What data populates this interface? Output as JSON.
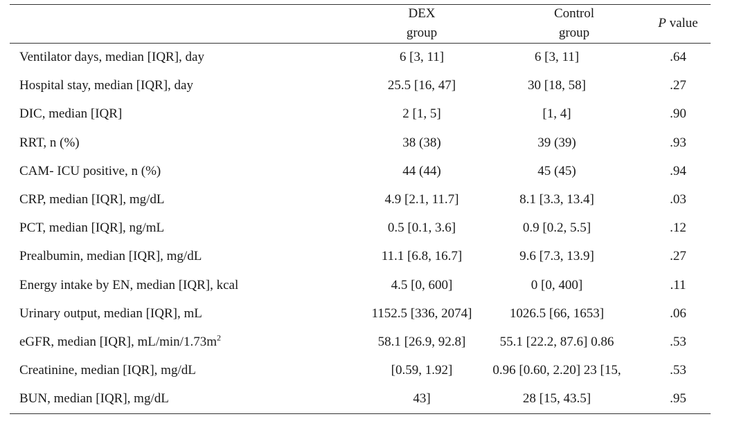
{
  "header": {
    "dex_line1": "DEX",
    "dex_line2": "group",
    "control_line1": "Control",
    "control_line2": "group",
    "p_italic": "P",
    "p_rest": " value"
  },
  "rows": [
    {
      "label": "Ventilator days, median [IQR], day",
      "dex": "6 [3, 11]",
      "control": "6 [3, 11]",
      "p": ".64"
    },
    {
      "label": "Hospital stay, median [IQR], day",
      "dex": "25.5 [16, 47]",
      "control": "30 [18, 58]",
      "p": ".27"
    },
    {
      "label": "DIC, median [IQR]",
      "dex": "2 [1, 5]",
      "control": "[1, 4]",
      "p": ".90"
    },
    {
      "label": "RRT, n (%)",
      "dex": "38 (38)",
      "control": "39 (39)",
      "p": ".93"
    },
    {
      "label": "CAM- ICU positive, n (%)",
      "dex": "44 (44)",
      "control": "45 (45)",
      "p": ".94"
    },
    {
      "label": "CRP, median [IQR], mg/dL",
      "dex": "4.9 [2.1, 11.7]",
      "control": "8.1 [3.3, 13.4]",
      "p": ".03"
    },
    {
      "label": "PCT, median [IQR], ng/mL",
      "dex": "0.5 [0.1, 3.6]",
      "control": "0.9 [0.2, 5.5]",
      "p": ".12"
    },
    {
      "label": "Prealbumin, median [IQR], mg/dL",
      "dex": "11.1 [6.8, 16.7]",
      "control": "9.6 [7.3, 13.9]",
      "p": ".27"
    },
    {
      "label": "Energy intake by EN, median [IQR], kcal",
      "dex": "4.5 [0, 600]",
      "control": "0 [0, 400]",
      "p": ".11"
    },
    {
      "label": "Urinary output, median [IQR], mL",
      "dex": "1152.5 [336, 2074]",
      "control": "1026.5 [66, 1653]",
      "p": ".06"
    },
    {
      "label": "eGFR, median [IQR], mL/min/1.73m",
      "label_sup": "2",
      "dex": "58.1 [26.9, 92.8]",
      "control": "55.1 [22.2, 87.6] 0.86",
      "p": ".53"
    },
    {
      "label": "Creatinine, median [IQR], mg/dL",
      "dex": "[0.59, 1.92]",
      "control": "0.96 [0.60, 2.20] 23 [15,",
      "p": ".53"
    },
    {
      "label": "BUN, median [IQR], mg/dL",
      "dex": "43]",
      "control": "28 [15, 43.5]",
      "p": ".95"
    }
  ]
}
